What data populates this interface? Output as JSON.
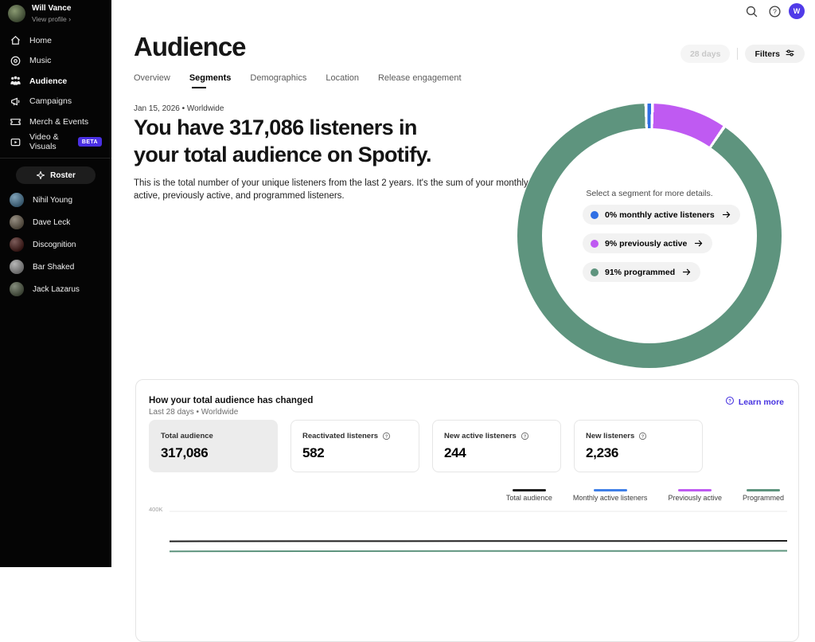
{
  "sidebar": {
    "profile": {
      "name": "Will Vance",
      "link": "View profile"
    },
    "nav": [
      {
        "label": "Home"
      },
      {
        "label": "Music"
      },
      {
        "label": "Audience",
        "active": true
      },
      {
        "label": "Campaigns"
      },
      {
        "label": "Merch & Events"
      },
      {
        "label": "Video & Visuals",
        "badge": "BETA"
      }
    ],
    "roster_label": "Roster",
    "artists": [
      {
        "name": "Nihil Young",
        "color": "#4f7f9e"
      },
      {
        "name": "Dave Leck",
        "color": "#6e6352"
      },
      {
        "name": "Discognition",
        "color": "#4a1d1a"
      },
      {
        "name": "Bar Shaked",
        "color": "#9a9a9a"
      },
      {
        "name": "Jack Lazarus",
        "color": "#55604a"
      }
    ]
  },
  "topbar": {
    "avatar_initial": "W",
    "avatar_color": "#503be8"
  },
  "header": {
    "title": "Audience",
    "range_button": "28 days",
    "filters_button": "Filters",
    "tabs": [
      {
        "label": "Overview"
      },
      {
        "label": "Segments",
        "active": true
      },
      {
        "label": "Demographics"
      },
      {
        "label": "Location"
      },
      {
        "label": "Release engagement"
      }
    ]
  },
  "content": {
    "date_line": "Jan 15, 2026 • Worldwide",
    "headline_line1": "You have 317,086 listeners in",
    "headline_line2": "your total audience on Spotify.",
    "description": "This is the total number of your unique listeners from the last 2 years. It's the sum of your monthly active, previously active, and programmed listeners."
  },
  "donut": {
    "prompt": "Select a segment for more details.",
    "segments": [
      {
        "label": "0% monthly active listeners",
        "color": "#2f6fe4"
      },
      {
        "label": "9% previously active",
        "color": "#bf5af2"
      },
      {
        "label": "91% programmed",
        "color": "#5e947e"
      }
    ]
  },
  "summary_card": {
    "title": "How your total audience has changed",
    "subtitle": "Last 28 days • Worldwide",
    "learn_more": "Learn more",
    "stats": [
      {
        "label": "Total audience",
        "value": "317,086"
      },
      {
        "label": "Reactivated listeners",
        "value": "582"
      },
      {
        "label": "New active listeners",
        "value": "244"
      },
      {
        "label": "New listeners",
        "value": "2,236"
      }
    ],
    "legend": [
      {
        "label": "Total audience",
        "color": "#1f1f1f"
      },
      {
        "label": "Monthly active listeners",
        "color": "#3f7fe8"
      },
      {
        "label": "Previously active",
        "color": "#bf5af2"
      },
      {
        "label": "Programmed",
        "color": "#5e947e"
      }
    ],
    "axis_label": "400K"
  },
  "chart_data": [
    {
      "type": "pie",
      "subtype": "donut",
      "title": "Total audience segments",
      "labels": [
        "Monthly active listeners",
        "Previously active",
        "Programmed"
      ],
      "values_pct": [
        0,
        9,
        91
      ],
      "colors": [
        "#2f6fe4",
        "#bf5af2",
        "#5e947e"
      ],
      "center_text": "Select a segment for more details.",
      "legend_position": "center"
    },
    {
      "type": "line",
      "title": "How your total audience has changed",
      "x_label": "Last 28 days",
      "y_tick_labels": [
        "400K"
      ],
      "y_gridlines": [
        400000
      ],
      "x": [
        0,
        7,
        14,
        21,
        28
      ],
      "series": [
        {
          "name": "Total audience",
          "color": "#1f1f1f",
          "values": [
            315800,
            316100,
            316400,
            316700,
            317086
          ]
        },
        {
          "name": "Monthly active listeners",
          "color": "#3f7fe8",
          "values": []
        },
        {
          "name": "Previously active",
          "color": "#bf5af2",
          "values": []
        },
        {
          "name": "Programmed",
          "color": "#5e947e",
          "values": [
            287600,
            287900,
            288300,
            288700,
            289100
          ]
        }
      ],
      "note": "chart cropped at bottom of viewport; only lines near 300K visible"
    }
  ]
}
